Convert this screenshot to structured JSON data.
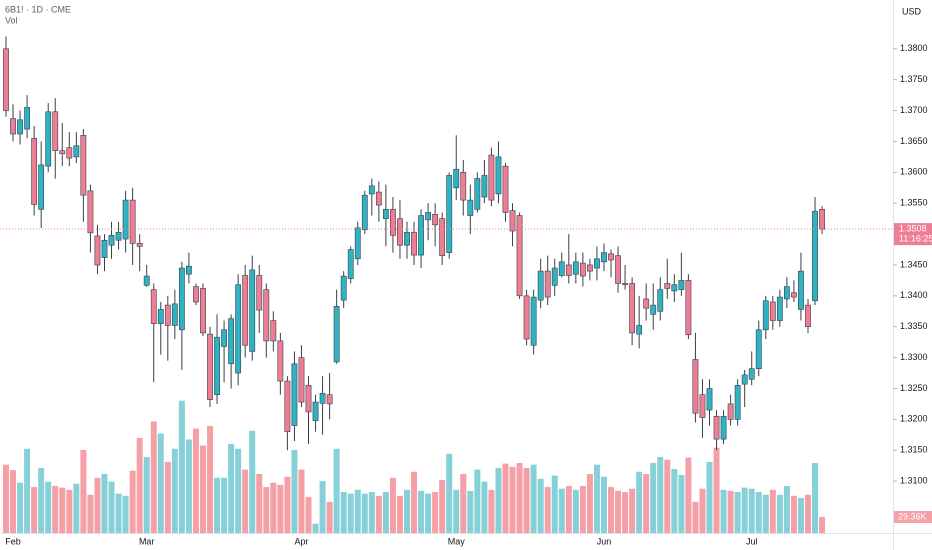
{
  "chart_data": {
    "type": "candlestick",
    "header": "6B1! · 1D · CME",
    "volume_title": "Vol",
    "currency": "USD",
    "countdown": "11:16:25",
    "up_color": "#2fb3c2",
    "down_color": "#ee7e94",
    "volume_up_color": "#86d0d8",
    "volume_down_color": "#f4a0a6",
    "grid": false,
    "categories": [
      null,
      "Feb",
      null,
      null,
      null,
      null,
      null,
      null,
      null,
      null,
      null,
      null,
      null,
      null,
      null,
      null,
      null,
      null,
      null,
      null,
      "Mar",
      null,
      null,
      null,
      null,
      null,
      null,
      null,
      null,
      null,
      null,
      null,
      null,
      null,
      null,
      null,
      null,
      null,
      null,
      null,
      null,
      null,
      "Apr",
      null,
      null,
      null,
      null,
      null,
      null,
      null,
      null,
      null,
      null,
      null,
      null,
      null,
      null,
      null,
      null,
      null,
      null,
      null,
      null,
      null,
      "May",
      null,
      null,
      null,
      null,
      null,
      null,
      null,
      null,
      null,
      null,
      null,
      null,
      null,
      null,
      null,
      null,
      null,
      null,
      null,
      null,
      "Jun",
      null,
      null,
      null,
      null,
      null,
      null,
      null,
      null,
      null,
      null,
      null,
      null,
      null,
      null,
      null,
      null,
      null,
      null,
      null,
      null,
      "Jul",
      null,
      null,
      null,
      null,
      null,
      null,
      null,
      null,
      null,
      null
    ],
    "open": [
      1.38,
      1.3687,
      1.3662,
      1.367,
      1.3655,
      1.354,
      1.361,
      1.3698,
      1.3635,
      1.364,
      1.3625,
      1.366,
      1.357,
      1.3497,
      1.3462,
      1.3482,
      1.349,
      1.3492,
      1.3555,
      1.3485,
      1.3417,
      1.341,
      1.3355,
      1.3385,
      1.3352,
      1.3345,
      1.3435,
      1.3415,
      1.3412,
      1.3338,
      1.324,
      1.3318,
      1.329,
      1.3275,
      1.3433,
      1.331,
      1.3433,
      1.341,
      1.336,
      1.3327,
      1.3262,
      1.319,
      1.33,
      1.3255,
      1.3198,
      1.3226,
      1.324,
      1.3293,
      1.3393,
      1.3428,
      1.346,
      1.3507,
      1.3565,
      1.3568,
      1.3525,
      1.354,
      1.3525,
      1.3482,
      1.3503,
      1.3466,
      1.3523,
      1.3532,
      1.3525,
      1.347,
      1.3575,
      1.36,
      1.353,
      1.354,
      1.356,
      1.3628,
      1.3565,
      1.361,
      1.3538,
      1.353,
      1.34,
      1.332,
      1.3393,
      1.344,
      1.3417,
      1.3433,
      1.345,
      1.3435,
      1.3453,
      1.345,
      1.3445,
      1.3455,
      1.3468,
      1.3465,
      1.342,
      1.342,
      1.3338,
      1.3395,
      1.337,
      1.3375,
      1.342,
      1.3408,
      1.341,
      1.3425,
      1.3297,
      1.324,
      1.3215,
      1.3205,
      1.3168,
      1.3225,
      1.32,
      1.3257,
      1.3265,
      1.3282,
      1.3345,
      1.339,
      1.336,
      1.3395,
      1.3405,
      1.3378,
      1.3385,
      1.3392,
      1.354
    ],
    "high": [
      1.382,
      1.371,
      1.37,
      1.3725,
      1.3675,
      1.365,
      1.3712,
      1.372,
      1.368,
      1.3665,
      1.3665,
      1.367,
      1.358,
      1.3515,
      1.35,
      1.352,
      1.352,
      1.357,
      1.3575,
      1.35,
      1.345,
      1.342,
      1.339,
      1.34,
      1.341,
      1.3455,
      1.347,
      1.342,
      1.342,
      1.335,
      1.337,
      1.336,
      1.337,
      1.3435,
      1.345,
      1.3465,
      1.345,
      1.342,
      1.3375,
      1.334,
      1.327,
      1.331,
      1.332,
      1.327,
      1.324,
      1.327,
      1.3275,
      1.341,
      1.344,
      1.348,
      1.352,
      1.357,
      1.359,
      1.3585,
      1.358,
      1.356,
      1.3555,
      1.352,
      1.352,
      1.354,
      1.355,
      1.355,
      1.3535,
      1.36,
      1.366,
      1.362,
      1.358,
      1.36,
      1.362,
      1.364,
      1.365,
      1.3615,
      1.355,
      1.3535,
      1.341,
      1.341,
      1.346,
      1.3465,
      1.346,
      1.347,
      1.35,
      1.347,
      1.347,
      1.346,
      1.348,
      1.3485,
      1.3475,
      1.348,
      1.345,
      1.343,
      1.34,
      1.342,
      1.342,
      1.343,
      1.346,
      1.3435,
      1.347,
      1.3435,
      1.334,
      1.3265,
      1.3265,
      1.3215,
      1.3215,
      1.324,
      1.3265,
      1.328,
      1.331,
      1.336,
      1.34,
      1.34,
      1.341,
      1.343,
      1.3425,
      1.347,
      1.3395,
      1.356,
      1.3545
    ],
    "low": [
      1.369,
      1.365,
      1.3645,
      1.3655,
      1.353,
      1.351,
      1.36,
      1.359,
      1.361,
      1.361,
      1.3615,
      1.352,
      1.347,
      1.3435,
      1.344,
      1.346,
      1.3475,
      1.347,
      1.345,
      1.344,
      1.3415,
      1.326,
      1.3305,
      1.3295,
      1.333,
      1.328,
      1.342,
      1.3385,
      1.3335,
      1.322,
      1.3225,
      1.326,
      1.325,
      1.3255,
      1.33,
      1.3295,
      1.334,
      1.33,
      1.331,
      1.324,
      1.315,
      1.3165,
      1.322,
      1.316,
      1.318,
      1.3175,
      1.32,
      1.329,
      1.338,
      1.342,
      1.345,
      1.35,
      1.353,
      1.352,
      1.348,
      1.347,
      1.346,
      1.346,
      1.345,
      1.3445,
      1.349,
      1.348,
      1.345,
      1.346,
      1.3555,
      1.353,
      1.35,
      1.3535,
      1.355,
      1.3545,
      1.355,
      1.352,
      1.348,
      1.3395,
      1.332,
      1.3305,
      1.338,
      1.3385,
      1.34,
      1.343,
      1.342,
      1.342,
      1.3415,
      1.3425,
      1.3425,
      1.344,
      1.343,
      1.3405,
      1.341,
      1.332,
      1.3315,
      1.336,
      1.3345,
      1.336,
      1.3395,
      1.339,
      1.34,
      1.333,
      1.3195,
      1.317,
      1.319,
      1.315,
      1.316,
      1.319,
      1.319,
      1.322,
      1.3255,
      1.327,
      1.333,
      1.3345,
      1.335,
      1.338,
      1.339,
      1.336,
      1.334,
      1.3385,
      1.35
    ],
    "close": [
      1.37,
      1.3662,
      1.3685,
      1.3705,
      1.3548,
      1.3612,
      1.3698,
      1.3635,
      1.363,
      1.3623,
      1.3643,
      1.3563,
      1.3502,
      1.345,
      1.349,
      1.3498,
      1.3503,
      1.3555,
      1.3485,
      1.348,
      1.3432,
      1.3355,
      1.3378,
      1.3352,
      1.3387,
      1.3445,
      1.3448,
      1.339,
      1.334,
      1.3232,
      1.3333,
      1.3345,
      1.3363,
      1.3418,
      1.332,
      1.3442,
      1.3377,
      1.3327,
      1.3327,
      1.3262,
      1.318,
      1.329,
      1.3228,
      1.3212,
      1.3228,
      1.3242,
      1.3225,
      1.3383,
      1.3432,
      1.3475,
      1.351,
      1.3563,
      1.3578,
      1.3547,
      1.354,
      1.3498,
      1.3482,
      1.3503,
      1.3466,
      1.353,
      1.3535,
      1.3515,
      1.3465,
      1.3595,
      1.3605,
      1.3555,
      1.3555,
      1.359,
      1.3595,
      1.3555,
      1.3625,
      1.3535,
      1.3505,
      1.34,
      1.333,
      1.3398,
      1.344,
      1.3398,
      1.3445,
      1.3455,
      1.3433,
      1.3455,
      1.3432,
      1.344,
      1.346,
      1.347,
      1.3458,
      1.342,
      1.3418,
      1.334,
      1.3352,
      1.338,
      1.3385,
      1.341,
      1.3412,
      1.3418,
      1.3425,
      1.3337,
      1.321,
      1.3203,
      1.325,
      1.3168,
      1.3205,
      1.32,
      1.3255,
      1.3272,
      1.3282,
      1.3345,
      1.3392,
      1.336,
      1.3398,
      1.3415,
      1.3398,
      1.344,
      1.335,
      1.3537,
      1.3508
    ],
    "close_labels": [
      null,
      null,
      null,
      null,
      null,
      null,
      null,
      null,
      null,
      null,
      null,
      null,
      null,
      null,
      null,
      null,
      null,
      null,
      null,
      null,
      null,
      null,
      null,
      null,
      null,
      null,
      null,
      null,
      null,
      null,
      null,
      null,
      null,
      null,
      null,
      null,
      null,
      null,
      null,
      null,
      null,
      null,
      null,
      null,
      null,
      null,
      null,
      null,
      null,
      null,
      null,
      null,
      null,
      null,
      null,
      null,
      null,
      null,
      null,
      null,
      null,
      null,
      null,
      null,
      null,
      null,
      null,
      null,
      null,
      null,
      null,
      null,
      null,
      null,
      null,
      null,
      null,
      null,
      null,
      null,
      null,
      null,
      null,
      null,
      null,
      null,
      null,
      null,
      null,
      null,
      null,
      null,
      null,
      null,
      null,
      null,
      null,
      null,
      null,
      null,
      null,
      null,
      null,
      null,
      null,
      null,
      null,
      null,
      null,
      null,
      null,
      null,
      null,
      null,
      null,
      null,
      "1.3508"
    ],
    "volume": [
      125000,
      115000,
      92000,
      154000,
      84000,
      119000,
      94000,
      86000,
      83000,
      79000,
      90000,
      152000,
      70000,
      101000,
      108000,
      94000,
      72000,
      68000,
      114000,
      174000,
      139000,
      204000,
      182000,
      130000,
      154000,
      242000,
      171000,
      191000,
      160000,
      196000,
      101000,
      101000,
      163000,
      154000,
      116000,
      187000,
      108000,
      84000,
      92000,
      88000,
      103000,
      152000,
      116000,
      66000,
      17000,
      95000,
      57000,
      154000,
      75000,
      72000,
      79000,
      72000,
      75000,
      68000,
      75000,
      101000,
      68000,
      79000,
      112000,
      77000,
      72000,
      75000,
      97000,
      145000,
      79000,
      108000,
      77000,
      116000,
      94000,
      79000,
      119000,
      127000,
      121000,
      128000,
      119000,
      125000,
      99000,
      84000,
      105000,
      81000,
      86000,
      79000,
      86000,
      108000,
      125000,
      103000,
      84000,
      77000,
      75000,
      81000,
      112000,
      108000,
      128000,
      139000,
      134000,
      117000,
      106000,
      138000,
      57000,
      81000,
      130000,
      156000,
      79000,
      77000,
      75000,
      83000,
      81000,
      75000,
      70000,
      79000,
      70000,
      86000,
      68000,
      64000,
      70000,
      128000,
      29360
    ],
    "volume_labels": [
      null,
      null,
      null,
      null,
      null,
      null,
      null,
      null,
      null,
      null,
      null,
      null,
      null,
      null,
      null,
      null,
      null,
      null,
      null,
      null,
      null,
      null,
      null,
      null,
      null,
      null,
      null,
      null,
      null,
      null,
      null,
      null,
      null,
      null,
      null,
      null,
      null,
      null,
      null,
      null,
      null,
      null,
      null,
      null,
      null,
      null,
      null,
      null,
      null,
      null,
      null,
      null,
      null,
      null,
      null,
      null,
      null,
      null,
      null,
      null,
      null,
      null,
      null,
      null,
      null,
      null,
      null,
      null,
      null,
      null,
      null,
      null,
      null,
      null,
      null,
      null,
      null,
      null,
      null,
      null,
      null,
      null,
      null,
      null,
      null,
      null,
      null,
      null,
      null,
      null,
      null,
      null,
      null,
      null,
      null,
      null,
      null,
      null,
      null,
      null,
      null,
      null,
      null,
      null,
      null,
      null,
      null,
      null,
      null,
      null,
      null,
      null,
      null,
      null,
      null,
      null,
      "29.36K"
    ],
    "ylim": [
      1.3016,
      1.3879
    ],
    "y2lim": [
      0,
      975000
    ],
    "yticks": [
      {
        "value": 1.31,
        "label": "1.3100"
      },
      {
        "value": 1.315,
        "label": "1.3150"
      },
      {
        "value": 1.32,
        "label": "1.3200"
      },
      {
        "value": 1.325,
        "label": "1.3250"
      },
      {
        "value": 1.33,
        "label": "1.3300"
      },
      {
        "value": 1.335,
        "label": "1.3350"
      },
      {
        "value": 1.34,
        "label": "1.3400"
      },
      {
        "value": 1.345,
        "label": "1.3450"
      },
      {
        "value": 1.355,
        "label": "1.3550"
      },
      {
        "value": 1.36,
        "label": "1.3600"
      },
      {
        "value": 1.365,
        "label": "1.3650"
      },
      {
        "value": 1.37,
        "label": "1.3700"
      },
      {
        "value": 1.375,
        "label": "1.3750"
      },
      {
        "value": 1.38,
        "label": "1.3800"
      }
    ]
  }
}
